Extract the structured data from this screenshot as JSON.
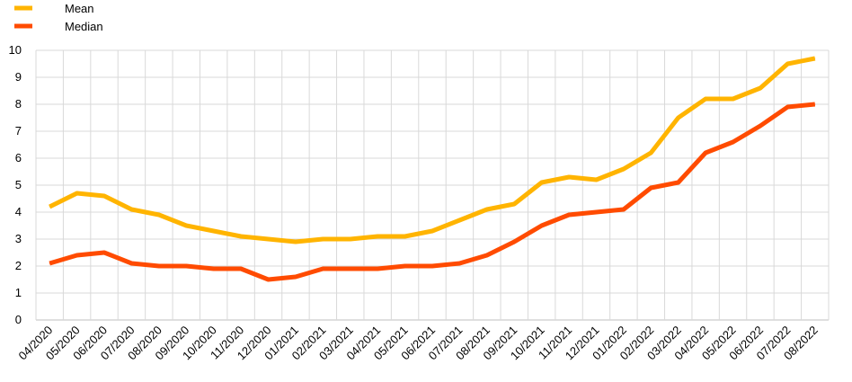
{
  "chart_data": {
    "type": "line",
    "title": "",
    "xlabel": "",
    "ylabel": "",
    "ylim": [
      0,
      10
    ],
    "yticks": [
      0,
      1,
      2,
      3,
      4,
      5,
      6,
      7,
      8,
      9,
      10
    ],
    "grid": true,
    "legend_position": "top-left",
    "categories": [
      "04/2020",
      "05/2020",
      "06/2020",
      "07/2020",
      "08/2020",
      "09/2020",
      "10/2020",
      "11/2020",
      "12/2020",
      "01/2021",
      "02/2021",
      "03/2021",
      "04/2021",
      "05/2021",
      "06/2021",
      "07/2021",
      "08/2021",
      "09/2021",
      "10/2021",
      "11/2021",
      "12/2021",
      "01/2022",
      "02/2022",
      "03/2022",
      "04/2022",
      "05/2022",
      "06/2022",
      "07/2022",
      "08/2022"
    ],
    "series": [
      {
        "name": "Mean",
        "color": "#FFB400",
        "values": [
          4.2,
          4.7,
          4.6,
          4.1,
          3.9,
          3.5,
          3.3,
          3.1,
          3.0,
          2.9,
          3.0,
          3.0,
          3.1,
          3.1,
          3.3,
          3.7,
          4.1,
          4.3,
          5.1,
          5.3,
          5.2,
          5.6,
          6.2,
          7.5,
          8.2,
          8.2,
          8.6,
          9.5,
          9.7
        ]
      },
      {
        "name": "Median",
        "color": "#FF4B00",
        "values": [
          2.1,
          2.4,
          2.5,
          2.1,
          2.0,
          2.0,
          1.9,
          1.9,
          1.5,
          1.6,
          1.9,
          1.9,
          1.9,
          2.0,
          2.0,
          2.1,
          2.4,
          2.9,
          3.5,
          3.9,
          4.0,
          4.1,
          4.9,
          5.1,
          6.2,
          6.6,
          7.2,
          7.9,
          8.0
        ]
      }
    ]
  }
}
